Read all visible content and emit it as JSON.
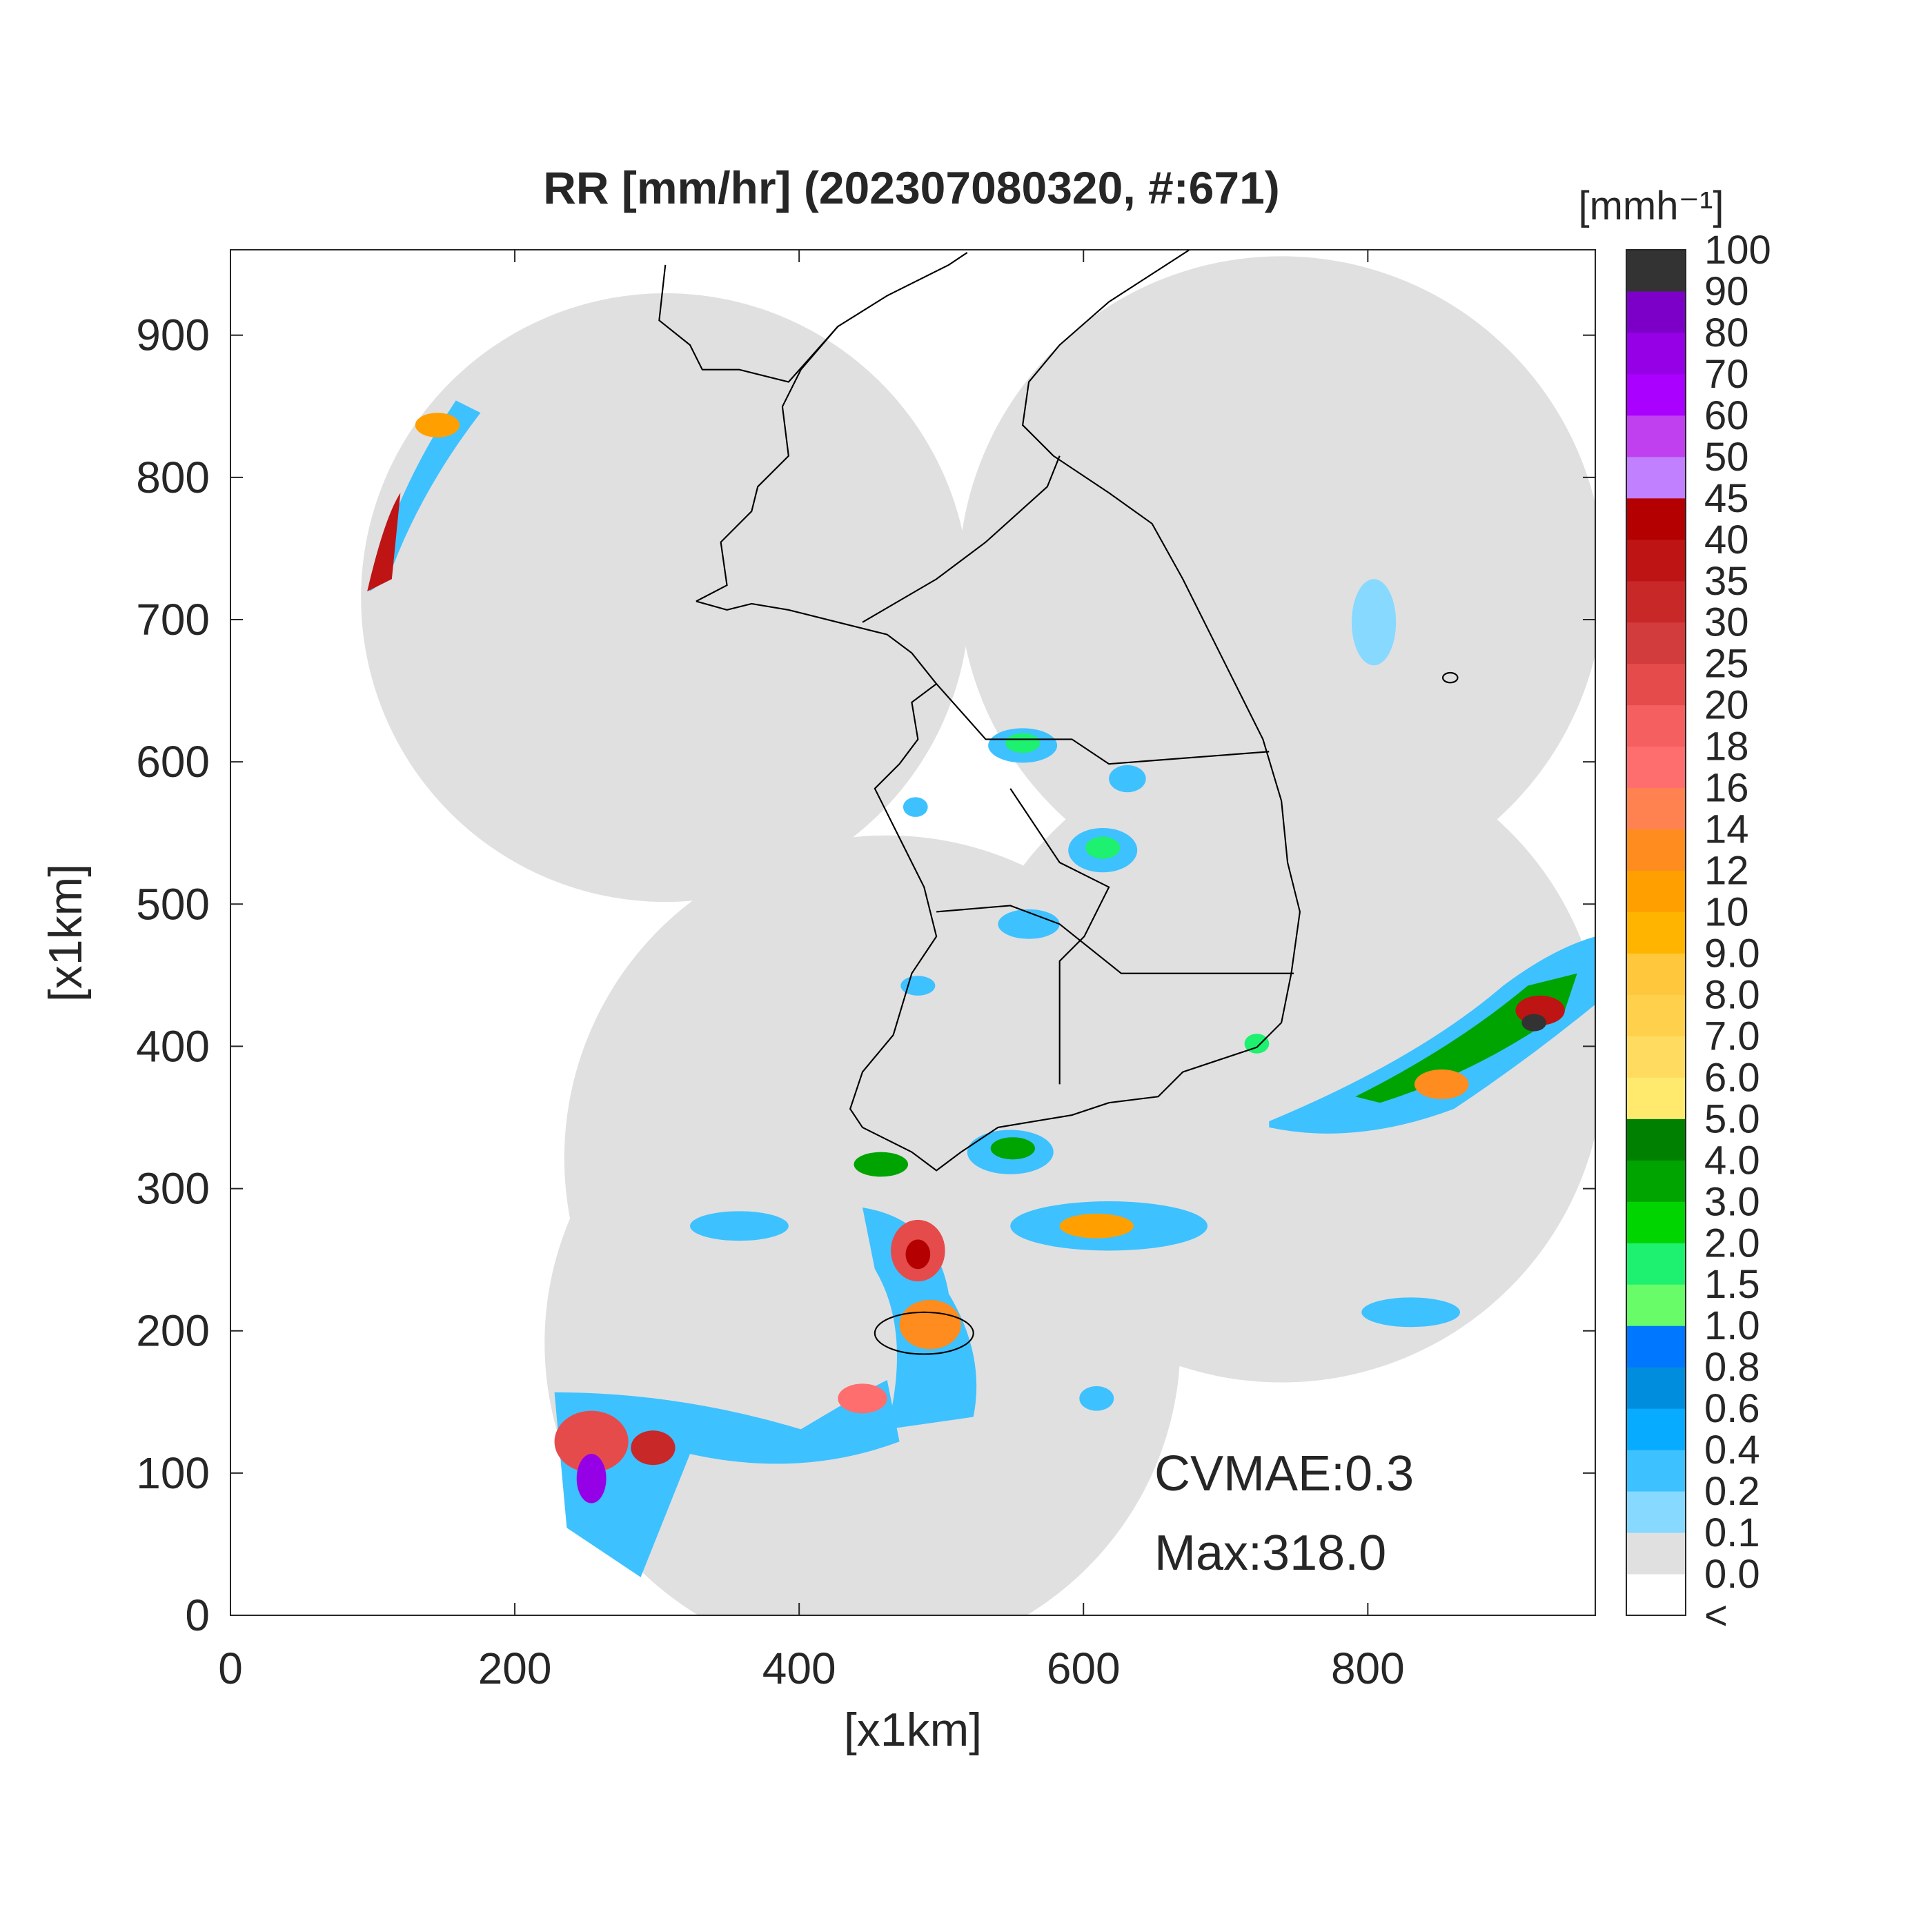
{
  "title": "RR [mm/hr] (202307080320, #:671)",
  "x_axis": {
    "label": "[x1km]",
    "lim": [
      0,
      960
    ],
    "ticks": [
      0,
      200,
      400,
      600,
      800
    ]
  },
  "y_axis": {
    "label": "[x1km]",
    "lim": [
      0,
      960
    ],
    "ticks": [
      0,
      100,
      200,
      300,
      400,
      500,
      600,
      700,
      800,
      900
    ]
  },
  "colorbar": {
    "unit_label": "[mmh⁻¹]",
    "labels": [
      "<",
      "0.0",
      "0.1",
      "0.2",
      "0.4",
      "0.6",
      "0.8",
      "1.0",
      "1.5",
      "2.0",
      "3.0",
      "4.0",
      "5.0",
      "6.0",
      "7.0",
      "8.0",
      "9.0",
      "10",
      "12",
      "14",
      "16",
      "18",
      "20",
      "25",
      "30",
      "35",
      "40",
      "45",
      "50",
      "60",
      "70",
      "80",
      "90",
      "100"
    ],
    "colors": [
      "#ffffff",
      "#e0e0e0",
      "#87d9ff",
      "#3ec1ff",
      "#07abff",
      "#008dde",
      "#0077ff",
      "#69fc69",
      "#1ef06f",
      "#00d500",
      "#00a400",
      "#008000",
      "#ffea6e",
      "#ffdc5f",
      "#ffd04b",
      "#ffc83c",
      "#ffb400",
      "#ffa000",
      "#ff8c1e",
      "#ff8250",
      "#ff6e6e",
      "#f55f5f",
      "#e64b4b",
      "#d23c3c",
      "#c82828",
      "#be1414",
      "#b40000",
      "#c080ff",
      "#c040f0",
      "#aa00ff",
      "#9600e6",
      "#7d00c8",
      "#333333"
    ]
  },
  "annotations": [
    "CVMAE:0.3",
    "Max:318.0"
  ]
}
